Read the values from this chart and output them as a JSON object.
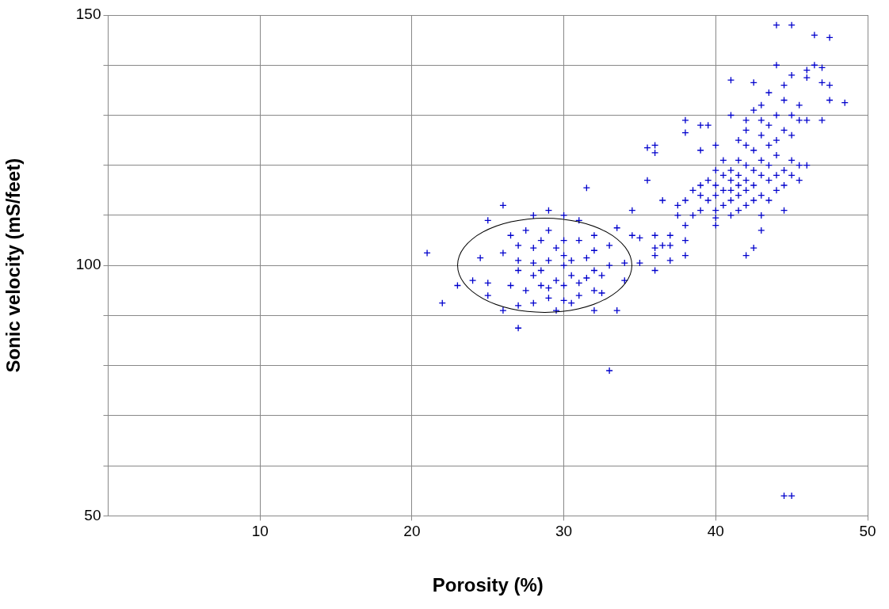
{
  "chart_data": {
    "type": "scatter",
    "xlabel": "Porosity (%)",
    "ylabel": "Sonic velocity (mS/feet)",
    "xlim": [
      0,
      50
    ],
    "ylim": [
      50,
      150
    ],
    "xticks": [
      10,
      20,
      30,
      40,
      50
    ],
    "yticks": [
      50,
      {
        "value": 60,
        "label": null
      },
      {
        "value": 70,
        "label": null
      },
      {
        "value": 80,
        "label": null
      },
      {
        "value": 90,
        "label": null
      },
      100,
      {
        "value": 110,
        "label": null
      },
      {
        "value": 120,
        "label": null
      },
      {
        "value": 130,
        "label": null
      },
      {
        "value": 140,
        "label": null
      },
      150
    ],
    "grid": true,
    "marker": "cross",
    "legend": false,
    "series": [
      {
        "color": "#0000cc",
        "x": [
          21,
          22,
          23,
          24,
          24.5,
          25,
          25,
          25,
          26,
          26,
          26,
          26.5,
          26.5,
          27,
          27,
          27,
          27,
          27,
          27.5,
          27.5,
          28,
          28,
          28,
          28,
          28,
          28.5,
          28.5,
          28.5,
          29,
          29,
          29,
          29,
          29,
          29.5,
          29.5,
          29.5,
          30,
          30,
          30,
          30,
          30,
          30,
          30.5,
          30.5,
          30.5,
          31,
          31,
          31,
          31,
          31.5,
          31.5,
          31.5,
          32,
          32,
          32,
          32,
          32,
          32.5,
          32.5,
          33,
          33,
          33,
          33.5,
          33.5,
          34,
          34,
          34.5,
          34.5,
          35,
          35,
          35.5,
          35.5,
          36,
          36,
          36,
          36,
          36,
          36,
          36.5,
          36.5,
          37,
          37,
          37,
          37.5,
          37.5,
          38,
          38,
          38,
          38,
          38,
          38,
          38.5,
          38.5,
          39,
          39,
          39,
          39,
          39,
          39.5,
          39.5,
          39.5,
          40,
          40,
          40,
          40,
          40,
          40,
          40,
          40.5,
          40.5,
          40.5,
          40.5,
          41,
          41,
          41,
          41,
          41,
          41,
          41,
          41.5,
          41.5,
          41.5,
          41.5,
          41.5,
          41.5,
          42,
          42,
          42,
          42,
          42,
          42,
          42,
          42,
          42.5,
          42.5,
          42.5,
          42.5,
          42.5,
          42.5,
          42.5,
          43,
          43,
          43,
          43,
          43,
          43,
          43,
          43,
          43.5,
          43.5,
          43.5,
          43.5,
          43.5,
          43.5,
          44,
          44,
          44,
          44,
          44,
          44,
          44,
          44.5,
          44.5,
          44.5,
          44.5,
          44.5,
          44.5,
          44.5,
          45,
          45,
          45,
          45,
          45,
          45,
          45,
          45.5,
          45.5,
          45.5,
          45.5,
          46,
          46,
          46,
          46,
          46.5,
          46.5,
          47,
          47,
          47,
          47.5,
          47.5,
          47.5,
          48.5
        ],
        "values": [
          102.5,
          92.5,
          96,
          97,
          101.5,
          94,
          96.5,
          109,
          91,
          102.5,
          112,
          96,
          106,
          87.5,
          92,
          99,
          101,
          104,
          107,
          95,
          92.5,
          98,
          100.5,
          103.5,
          110,
          96,
          105,
          99,
          93.5,
          95.5,
          101,
          107,
          111,
          91,
          97,
          103.5,
          93,
          96,
          100,
          102,
          105,
          110,
          92.5,
          98,
          101,
          94,
          96.5,
          105,
          109,
          97.5,
          101.5,
          115.5,
          91,
          95,
          99,
          103,
          106,
          94.5,
          98,
          79,
          100,
          104,
          91,
          107.5,
          97,
          100.5,
          106,
          111,
          100.5,
          105.5,
          117,
          123.5,
          99,
          102,
          103.5,
          106,
          122.5,
          124,
          104,
          113,
          101,
          104,
          106,
          110,
          112,
          102,
          105,
          108,
          113,
          126.5,
          129,
          110,
          115,
          111,
          114,
          116,
          123,
          128,
          113,
          117,
          128,
          108,
          109.5,
          111,
          114,
          116,
          119,
          124,
          112,
          115,
          118,
          121,
          110,
          113,
          115,
          117,
          119,
          130,
          137,
          111,
          114,
          116,
          118,
          121,
          125,
          102,
          112,
          115,
          117,
          120,
          124,
          127,
          129,
          103.5,
          113,
          116,
          119,
          123,
          131,
          136.5,
          107,
          110,
          114,
          118,
          121,
          126,
          129,
          132,
          113,
          117,
          120,
          124,
          128,
          134.5,
          115,
          118,
          122,
          125,
          130,
          140,
          148,
          54,
          111,
          116,
          119,
          127,
          133,
          136,
          54,
          118,
          121,
          126,
          130,
          138,
          148,
          117,
          120,
          129,
          132,
          120,
          129,
          137.5,
          139,
          140,
          146,
          129,
          139.5,
          136.5,
          136,
          133,
          145.5,
          132.5
        ]
      }
    ]
  }
}
